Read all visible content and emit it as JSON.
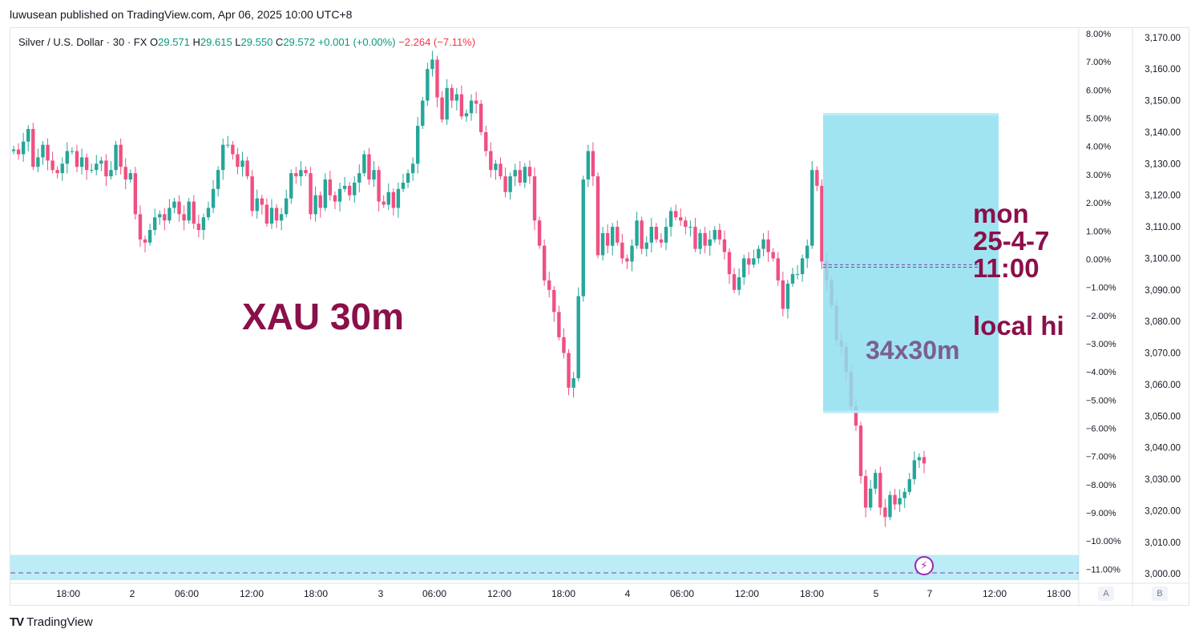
{
  "publisher_line": "luwusean published on TradingView.com, Apr 06, 2025 10:00 UTC+8",
  "legend": {
    "symbol": "Silver / U.S. Dollar · 30 · FX",
    "o_label": "O",
    "o": "29.571",
    "h_label": "H",
    "h": "29.615",
    "l_label": "L",
    "l": "29.550",
    "c_label": "C",
    "c": "29.572",
    "change": "+0.001 (+0.00%)",
    "change2": "−2.264 (−7.11%)"
  },
  "annotations": {
    "title": "XAU 30m",
    "box_label": "34x30m",
    "note_lines": [
      "mon",
      "25-4-7",
      "11:00"
    ],
    "note_hi": "local hi"
  },
  "footer": {
    "logo": "TV",
    "brand": "TradingView"
  },
  "scale_badges": {
    "a": "A",
    "b": "B"
  },
  "colors": {
    "up": "#26a69a",
    "down": "#ef5082",
    "box": "#8fdfee",
    "annot": "#8b0f4a",
    "boxtext": "#7b5f8e",
    "dash": "#7b3fb0"
  },
  "icons": {
    "alert": "lightning-icon",
    "logo": "tradingview-logo-icon"
  },
  "chart_data": {
    "type": "candlestick",
    "title": "",
    "x_tick_labels": [
      "18:00",
      "2",
      "06:00",
      "12:00",
      "18:00",
      "3",
      "06:00",
      "12:00",
      "18:00",
      "4",
      "06:00",
      "12:00",
      "18:00",
      "5",
      "7",
      "12:00",
      "18:00"
    ],
    "pct_axis_labels": [
      "8.00%",
      "7.00%",
      "6.00%",
      "5.00%",
      "4.00%",
      "3.00%",
      "2.00%",
      "1.00%",
      "0.00%",
      "−1.00%",
      "−2.00%",
      "−3.00%",
      "−4.00%",
      "−5.00%",
      "−6.00%",
      "−7.00%",
      "−8.00%",
      "−9.00%",
      "−10.00%",
      "−11.00%"
    ],
    "price_axis_labels": [
      "3,170.00",
      "3,160.00",
      "3,150.00",
      "3,140.00",
      "3,130.00",
      "3,120.00",
      "3,110.00",
      "3,100.00",
      "3,090.00",
      "3,080.00",
      "3,070.00",
      "3,060.00",
      "3,050.00",
      "3,040.00",
      "3,030.00",
      "3,020.00",
      "3,010.00",
      "3,000.00"
    ],
    "price_range": [
      2997,
      3173
    ],
    "pct_range": [
      -11.5,
      8.2
    ],
    "rect_zone": {
      "top": 3146,
      "bottom": 3051
    },
    "bottom_zone": {
      "top": 3006,
      "bottom": 2998
    },
    "dashed_levels_price": [
      3098.0,
      3097.2,
      3000.3
    ],
    "closes": [
      3134.5,
      3133,
      3137,
      3141,
      3129,
      3132,
      3136,
      3131,
      3128,
      3127,
      3130,
      3134,
      3134,
      3129,
      3132,
      3128,
      3128,
      3130,
      3131,
      3126,
      3128,
      3136,
      3129,
      3125,
      3127,
      3114,
      3106,
      3105,
      3109,
      3113,
      3114,
      3112,
      3116,
      3118,
      3114,
      3112,
      3118,
      3111,
      3109,
      3113,
      3116,
      3122,
      3128,
      3136,
      3136,
      3133,
      3129,
      3131,
      3126,
      3115,
      3119,
      3117,
      3111,
      3116,
      3112,
      3114,
      3119,
      3127,
      3126,
      3128,
      3127,
      3114,
      3120,
      3116,
      3125,
      3120,
      3118,
      3122,
      3123,
      3120,
      3124,
      3127,
      3133,
      3125,
      3128,
      3118,
      3117,
      3121,
      3116,
      3122,
      3124,
      3127,
      3130,
      3142,
      3150,
      3160,
      3163,
      3151,
      3144,
      3154,
      3150,
      3152,
      3145,
      3146,
      3150,
      3149,
      3140,
      3134,
      3128,
      3130,
      3126,
      3121,
      3126,
      3128,
      3124,
      3129,
      3126,
      3112,
      3104,
      3093,
      3090,
      3083,
      3075,
      3070,
      3059,
      3062,
      3088,
      3125,
      3134,
      3126,
      3101,
      3108,
      3104,
      3110,
      3105,
      3100,
      3099,
      3104,
      3112,
      3103,
      3105,
      3110,
      3106,
      3105,
      3110,
      3115,
      3113,
      3112,
      3110,
      3110,
      3103,
      3108,
      3104,
      3106,
      3109,
      3106,
      3102,
      3095,
      3090,
      3094,
      3100,
      3098,
      3100,
      3103,
      3106,
      3102,
      3100,
      3093,
      3084,
      3092,
      3095,
      3095,
      3100,
      3104,
      3128,
      3123,
      3099,
      3093,
      3085,
      3074,
      3072,
      3064,
      3053,
      3047,
      3031,
      3021,
      3027,
      3032,
      3021,
      3018,
      3025,
      3022,
      3024,
      3026,
      3030,
      3036,
      3037,
      3035
    ]
  }
}
